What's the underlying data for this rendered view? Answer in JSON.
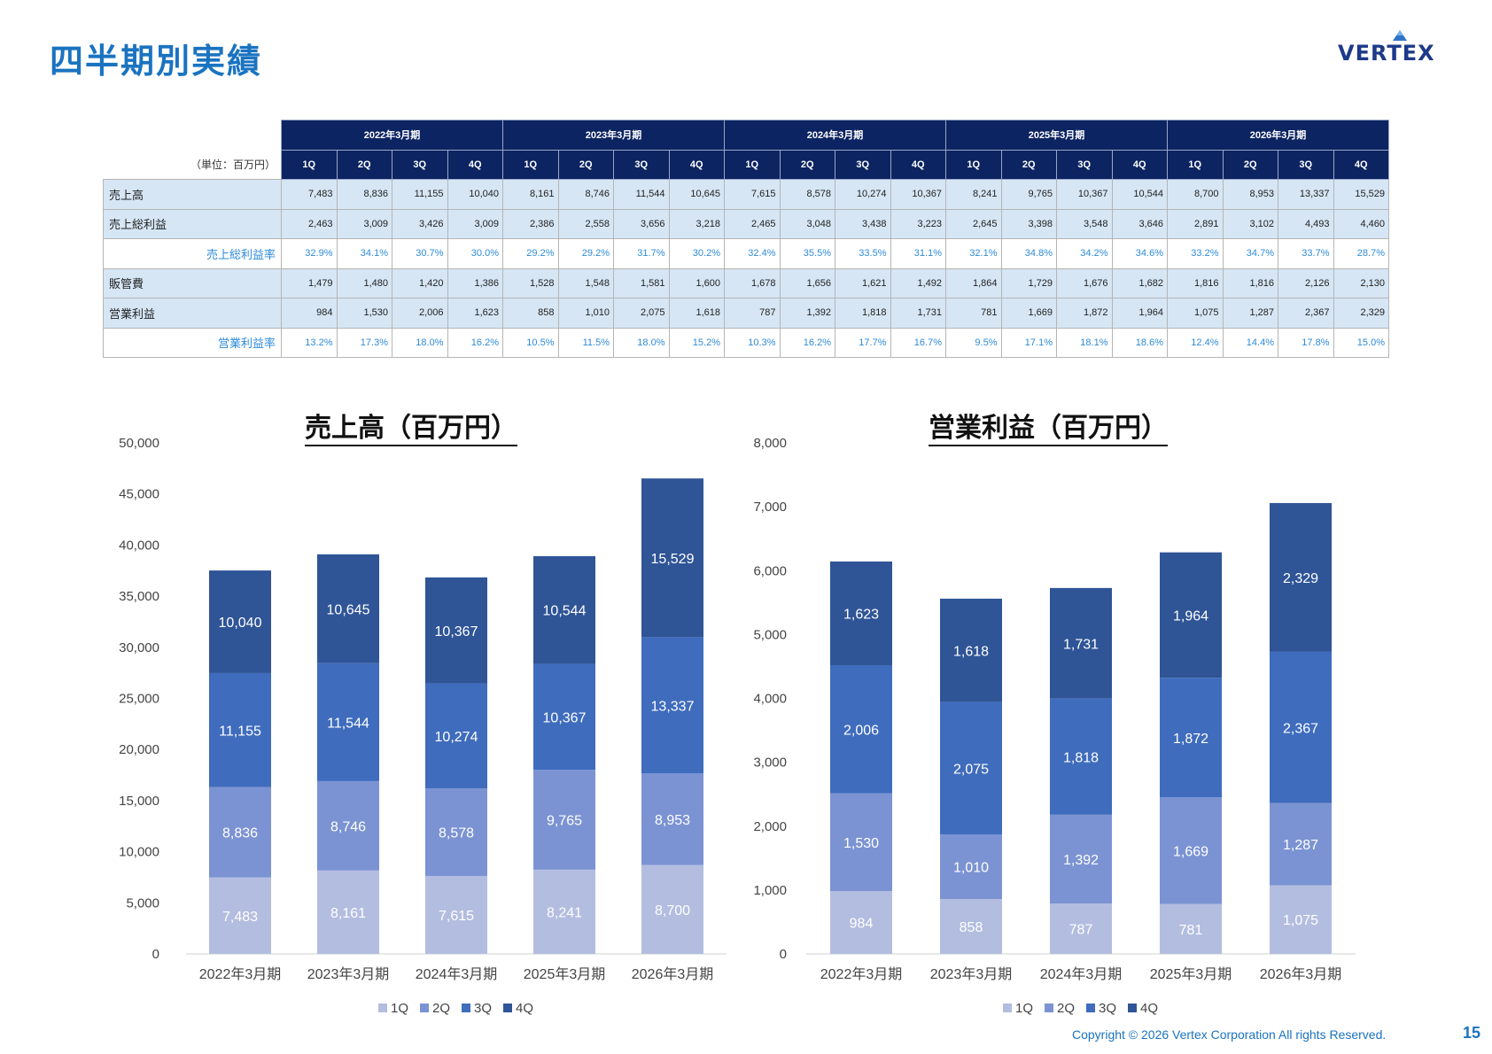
{
  "header": {
    "title": "四半期別実績",
    "logo_text": "VERTEX"
  },
  "table": {
    "unit_label": "（単位：百万円）",
    "periods": [
      "2022年3月期",
      "2023年3月期",
      "2024年3月期",
      "2025年3月期",
      "2026年3月期"
    ],
    "quarters": [
      "1Q",
      "2Q",
      "3Q",
      "4Q"
    ],
    "rows": [
      {
        "label": "売上高",
        "kind": "main",
        "values": [
          "7,483",
          "8,836",
          "11,155",
          "10,040",
          "8,161",
          "8,746",
          "11,544",
          "10,645",
          "7,615",
          "8,578",
          "10,274",
          "10,367",
          "8,241",
          "9,765",
          "10,367",
          "10,544",
          "8,700",
          "8,953",
          "13,337",
          "15,529"
        ]
      },
      {
        "label": "売上総利益",
        "kind": "main",
        "values": [
          "2,463",
          "3,009",
          "3,426",
          "3,009",
          "2,386",
          "2,558",
          "3,656",
          "3,218",
          "2,465",
          "3,048",
          "3,438",
          "3,223",
          "2,645",
          "3,398",
          "3,548",
          "3,646",
          "2,891",
          "3,102",
          "4,493",
          "4,460"
        ]
      },
      {
        "label": "売上総利益率",
        "kind": "rate",
        "values": [
          "32.9%",
          "34.1%",
          "30.7%",
          "30.0%",
          "29.2%",
          "29.2%",
          "31.7%",
          "30.2%",
          "32.4%",
          "35.5%",
          "33.5%",
          "31.1%",
          "32.1%",
          "34.8%",
          "34.2%",
          "34.6%",
          "33.2%",
          "34.7%",
          "33.7%",
          "28.7%"
        ]
      },
      {
        "label": "販管費",
        "kind": "main",
        "values": [
          "1,479",
          "1,480",
          "1,420",
          "1,386",
          "1,528",
          "1,548",
          "1,581",
          "1,600",
          "1,678",
          "1,656",
          "1,621",
          "1,492",
          "1,864",
          "1,729",
          "1,676",
          "1,682",
          "1,816",
          "1,816",
          "2,126",
          "2,130"
        ]
      },
      {
        "label": "営業利益",
        "kind": "main",
        "values": [
          "984",
          "1,530",
          "2,006",
          "1,623",
          "858",
          "1,010",
          "2,075",
          "1,618",
          "787",
          "1,392",
          "1,818",
          "1,731",
          "781",
          "1,669",
          "1,872",
          "1,964",
          "1,075",
          "1,287",
          "2,367",
          "2,329"
        ]
      },
      {
        "label": "営業利益率",
        "kind": "rate",
        "values": [
          "13.2%",
          "17.3%",
          "18.0%",
          "16.2%",
          "10.5%",
          "11.5%",
          "18.0%",
          "15.2%",
          "10.3%",
          "16.2%",
          "17.7%",
          "16.7%",
          "9.5%",
          "17.1%",
          "18.1%",
          "18.6%",
          "12.4%",
          "14.4%",
          "17.8%",
          "15.0%"
        ]
      }
    ]
  },
  "colors": {
    "1Q": "#b3bde0",
    "2Q": "#7b93d2",
    "3Q": "#3f6cbd",
    "4Q": "#2f5597",
    "header_bg": "#0c2461",
    "row_bg": "#d6e6f5",
    "rate_text": "#2e8bd8",
    "title_blue": "#1a73c0"
  },
  "chart_data": [
    {
      "type": "bar",
      "stacked": true,
      "title": "売上高（百万円）",
      "categories": [
        "2022年3月期",
        "2023年3月期",
        "2024年3月期",
        "2025年3月期",
        "2026年3月期"
      ],
      "series": [
        {
          "name": "1Q",
          "values": [
            7483,
            8161,
            7615,
            8241,
            8700
          ]
        },
        {
          "name": "2Q",
          "values": [
            8836,
            8746,
            8578,
            9765,
            8953
          ]
        },
        {
          "name": "3Q",
          "values": [
            11155,
            11544,
            10274,
            10367,
            13337
          ]
        },
        {
          "name": "4Q",
          "values": [
            10040,
            10645,
            10367,
            10544,
            15529
          ]
        }
      ],
      "ylim": [
        0,
        50000
      ],
      "yticks": [
        0,
        5000,
        10000,
        15000,
        20000,
        25000,
        30000,
        35000,
        40000,
        45000,
        50000
      ],
      "ytick_labels": [
        "0",
        "5,000",
        "10,000",
        "15,000",
        "20,000",
        "25,000",
        "30,000",
        "35,000",
        "40,000",
        "45,000",
        "50,000"
      ],
      "grid": false,
      "legend": "bottom"
    },
    {
      "type": "bar",
      "stacked": true,
      "title": "営業利益（百万円）",
      "categories": [
        "2022年3月期",
        "2023年3月期",
        "2024年3月期",
        "2025年3月期",
        "2026年3月期"
      ],
      "series": [
        {
          "name": "1Q",
          "values": [
            984,
            858,
            787,
            781,
            1075
          ]
        },
        {
          "name": "2Q",
          "values": [
            1530,
            1010,
            1392,
            1669,
            1287
          ]
        },
        {
          "name": "3Q",
          "values": [
            2006,
            2075,
            1818,
            1872,
            2367
          ]
        },
        {
          "name": "4Q",
          "values": [
            1623,
            1618,
            1731,
            1964,
            2329
          ]
        }
      ],
      "ylim": [
        0,
        8000
      ],
      "yticks": [
        0,
        1000,
        2000,
        3000,
        4000,
        5000,
        6000,
        7000,
        8000
      ],
      "ytick_labels": [
        "0",
        "1,000",
        "2,000",
        "3,000",
        "4,000",
        "5,000",
        "6,000",
        "7,000",
        "8,000"
      ],
      "grid": false,
      "legend": "bottom"
    }
  ],
  "footer": {
    "copyright": "Copyright © 2026 Vertex Corporation All rights Reserved.",
    "page_number": "15"
  }
}
